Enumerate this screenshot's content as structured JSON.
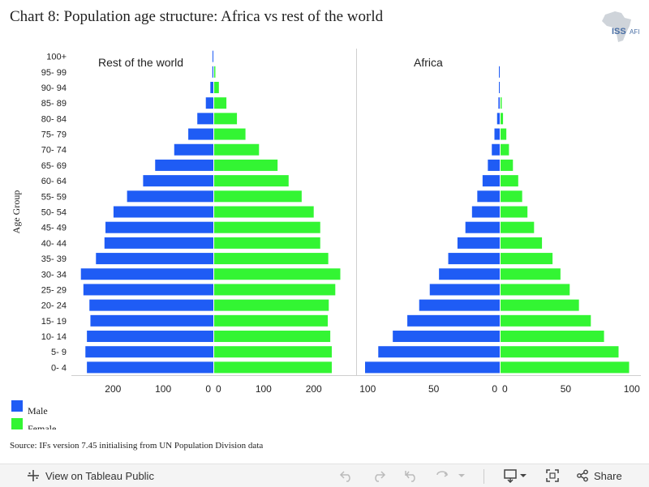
{
  "title": "Chart 8: Population age structure: Africa vs rest of the world",
  "logo": {
    "text_iss": "ISS",
    "text_afi": "AFI"
  },
  "source": "Source: IFs version 7.45 initialising from UN Population Division data",
  "footer": {
    "view_label": "View on Tableau Public",
    "share_label": "Share"
  },
  "legend": [
    {
      "label": "Male",
      "color": "#1f5cf5"
    },
    {
      "label": "Female",
      "color": "#33f533"
    }
  ],
  "chart_data": {
    "type": "bar",
    "orientation": "horizontal",
    "subtype": "population-pyramid",
    "ylabel": "Age Group",
    "categories": [
      "100+",
      "95- 99",
      "90- 94",
      "85- 89",
      "80- 84",
      "75- 79",
      "70- 74",
      "65- 69",
      "60- 64",
      "55- 59",
      "50- 54",
      "45- 49",
      "40- 44",
      "35- 39",
      "30- 34",
      "25- 29",
      "20- 24",
      "15- 19",
      "10- 14",
      "5- 9",
      "0- 4"
    ],
    "colors": {
      "male": "#1f5cf5",
      "female": "#33f533"
    },
    "panels": [
      {
        "title": "Rest of the world",
        "male_ticks": [
          200,
          100,
          0
        ],
        "female_ticks": [
          0,
          100,
          200
        ],
        "male_max": 270,
        "female_max": 270,
        "series": [
          {
            "name": "Male",
            "values": [
              0.5,
              2,
              6,
              15,
              32,
              50,
              78,
              116,
              140,
              172,
              199,
              215,
              217,
              234,
              264,
              259,
              247,
              245,
              252,
              255,
              252
            ]
          },
          {
            "name": "Female",
            "values": [
              1.5,
              4,
              11,
              26,
              47,
              64,
              91,
              128,
              150,
              176,
              200,
              213,
              213,
              229,
              253,
              243,
              230,
              228,
              233,
              236,
              236
            ]
          }
        ]
      },
      {
        "title": "Africa",
        "male_ticks": [
          100,
          50,
          0
        ],
        "female_ticks": [
          0,
          50,
          100
        ],
        "male_max": 102,
        "female_max": 102,
        "series": [
          {
            "name": "Male",
            "values": [
              0,
              0.2,
              0.4,
              1,
              2,
              4,
              6,
              9,
              13,
              17,
              21,
              26,
              32,
              39,
              46,
              53,
              61,
              70,
              81,
              92,
              102
            ]
          },
          {
            "name": "Female",
            "values": [
              0,
              0.3,
              0.6,
              1.5,
              2.5,
              5,
              7,
              10,
              14,
              17,
              21,
              26,
              32,
              40,
              46,
              53,
              60,
              69,
              79,
              90,
              98
            ]
          }
        ]
      }
    ]
  }
}
